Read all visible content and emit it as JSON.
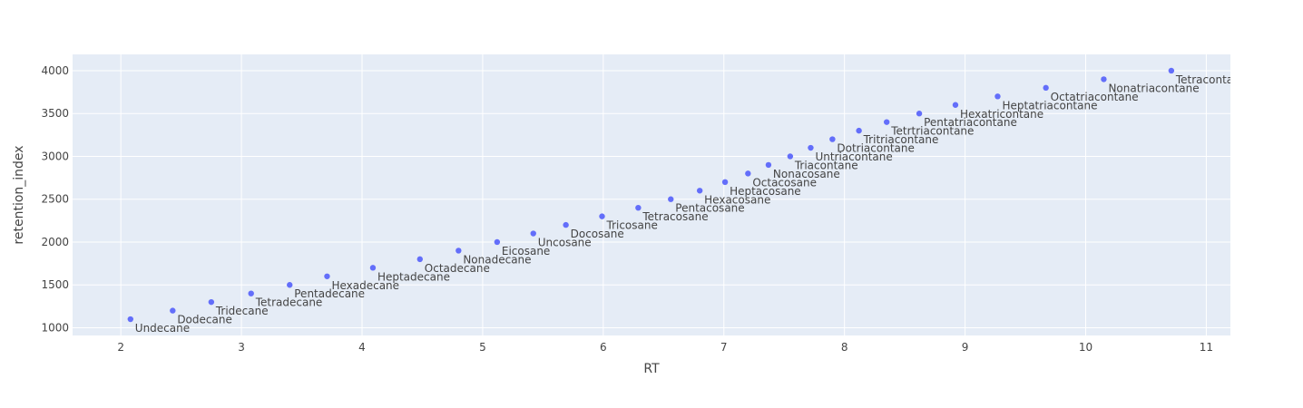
{
  "chart_data": {
    "type": "scatter",
    "title": "",
    "xlabel": "RT",
    "ylabel": "retention_index",
    "xlim": [
      1.6,
      11.2
    ],
    "ylim": [
      910,
      4190
    ],
    "xticks": [
      2,
      3,
      4,
      5,
      6,
      7,
      8,
      9,
      10,
      11
    ],
    "yticks": [
      1000,
      1500,
      2000,
      2500,
      3000,
      3500,
      4000
    ],
    "grid": true,
    "legend": "none",
    "colors": {
      "plot_bg": "#e5ecf6",
      "grid": "#ffffff",
      "marker": "#636efa",
      "text": "#444444"
    },
    "points": [
      {
        "x": 2.08,
        "y": 1100,
        "label": "Undecane"
      },
      {
        "x": 2.43,
        "y": 1200,
        "label": "Dodecane"
      },
      {
        "x": 2.75,
        "y": 1300,
        "label": "Tridecane"
      },
      {
        "x": 3.08,
        "y": 1400,
        "label": "Tetradecane"
      },
      {
        "x": 3.4,
        "y": 1500,
        "label": "Pentadecane"
      },
      {
        "x": 3.71,
        "y": 1600,
        "label": "Hexadecane"
      },
      {
        "x": 4.09,
        "y": 1700,
        "label": "Heptadecane"
      },
      {
        "x": 4.48,
        "y": 1800,
        "label": "Octadecane"
      },
      {
        "x": 4.8,
        "y": 1900,
        "label": "Nonadecane"
      },
      {
        "x": 5.12,
        "y": 2000,
        "label": "Eicosane"
      },
      {
        "x": 5.42,
        "y": 2100,
        "label": "Uncosane"
      },
      {
        "x": 5.69,
        "y": 2200,
        "label": "Docosane"
      },
      {
        "x": 5.99,
        "y": 2300,
        "label": "Tricosane"
      },
      {
        "x": 6.29,
        "y": 2400,
        "label": "Tetracosane"
      },
      {
        "x": 6.56,
        "y": 2500,
        "label": "Pentacosane"
      },
      {
        "x": 6.8,
        "y": 2600,
        "label": "Hexacosane"
      },
      {
        "x": 7.01,
        "y": 2700,
        "label": "Heptacosane"
      },
      {
        "x": 7.2,
        "y": 2800,
        "label": "Octacosane"
      },
      {
        "x": 7.37,
        "y": 2900,
        "label": "Nonacosane"
      },
      {
        "x": 7.55,
        "y": 3000,
        "label": "Triacontane"
      },
      {
        "x": 7.72,
        "y": 3100,
        "label": "Untriacontane"
      },
      {
        "x": 7.9,
        "y": 3200,
        "label": "Dotriacontane"
      },
      {
        "x": 8.12,
        "y": 3300,
        "label": "Tritriacontane"
      },
      {
        "x": 8.35,
        "y": 3400,
        "label": "Tetrtriacontane"
      },
      {
        "x": 8.62,
        "y": 3500,
        "label": "Pentatriacontane"
      },
      {
        "x": 8.92,
        "y": 3600,
        "label": "Hexatricontane"
      },
      {
        "x": 9.27,
        "y": 3700,
        "label": "Heptatriacontane"
      },
      {
        "x": 9.67,
        "y": 3800,
        "label": "Octatriacontane"
      },
      {
        "x": 10.15,
        "y": 3900,
        "label": "Nonatriacontane"
      },
      {
        "x": 10.71,
        "y": 4000,
        "label": "Tetracontane"
      }
    ]
  }
}
